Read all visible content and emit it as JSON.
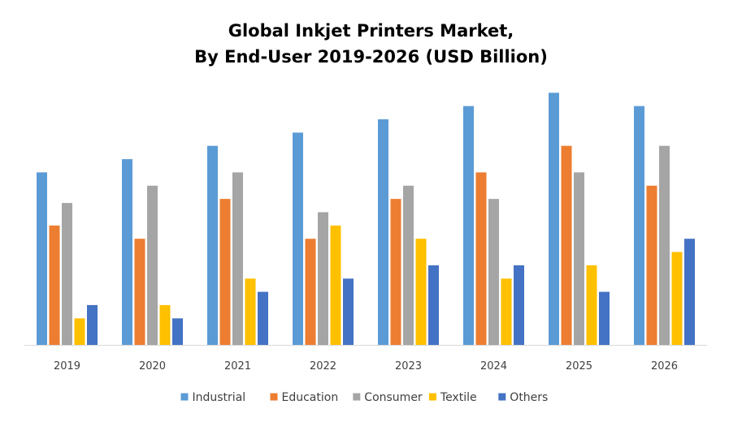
{
  "chart_data": {
    "type": "bar",
    "title_lines": [
      "Global Inkjet Printers Market,",
      "By End-User 2019-2026 (USD Billion)"
    ],
    "categories": [
      "2019",
      "2020",
      "2021",
      "2022",
      "2023",
      "2024",
      "2025",
      "2026"
    ],
    "series": [
      {
        "name": "Industrial",
        "color": "#5B9BD5",
        "values": [
          13,
          14,
          15,
          16,
          17,
          18,
          19,
          18
        ]
      },
      {
        "name": "Education",
        "color": "#ED7D31",
        "values": [
          9,
          8,
          11,
          8,
          11,
          13,
          15,
          12
        ]
      },
      {
        "name": "Consumer",
        "color": "#A5A5A5",
        "values": [
          10.7,
          12,
          13,
          10,
          12,
          11,
          13,
          15
        ]
      },
      {
        "name": "Textile",
        "color": "#FFC000",
        "values": [
          2,
          3,
          5,
          9,
          8,
          5,
          6,
          7
        ]
      },
      {
        "name": "Others",
        "color": "#4472C4",
        "values": [
          3,
          2,
          4,
          5,
          6,
          6,
          4,
          8
        ]
      }
    ],
    "ylim": [
      0,
      20
    ],
    "grid": false,
    "legend_position": "bottom"
  }
}
